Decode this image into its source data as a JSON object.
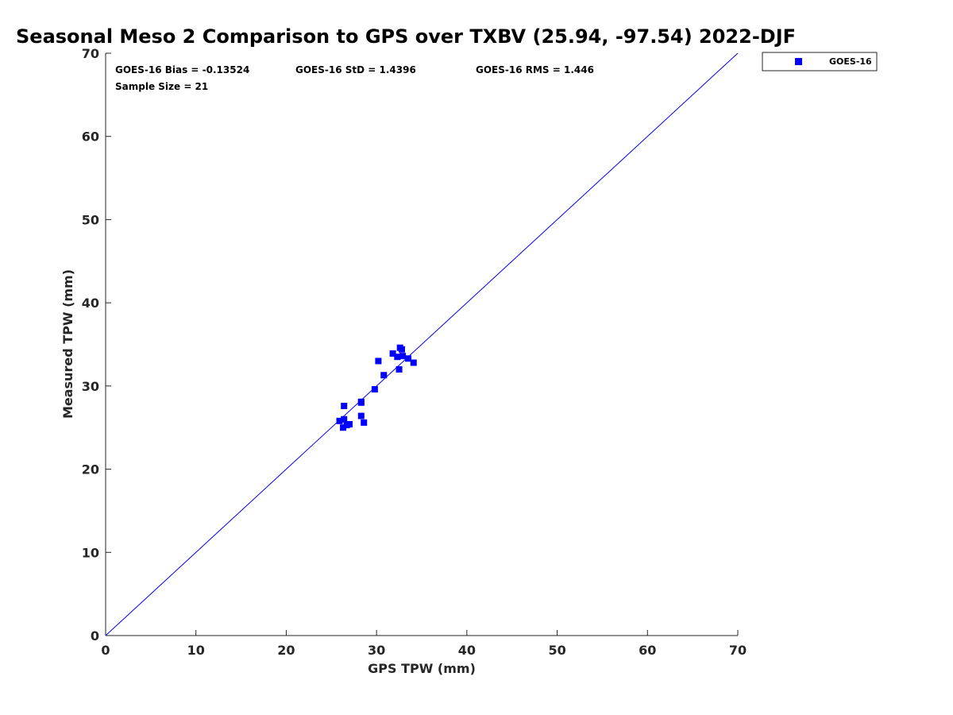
{
  "chart_data": {
    "type": "scatter",
    "title": "Seasonal Meso 2 Comparison to GPS over TXBV (25.94, -97.54) 2022-DJF",
    "xlabel": "GPS TPW (mm)",
    "ylabel": "Measured TPW (mm)",
    "xlim": [
      0,
      70
    ],
    "ylim": [
      0,
      70
    ],
    "xticks": [
      "0",
      "10",
      "20",
      "30",
      "40",
      "50",
      "60",
      "70"
    ],
    "yticks": [
      "0",
      "10",
      "20",
      "30",
      "40",
      "50",
      "60",
      "70"
    ],
    "grid": false,
    "legend_position": "outside top-right",
    "reference_line": {
      "x": [
        0,
        70
      ],
      "y": [
        0,
        70
      ],
      "color": "#0000ff"
    },
    "stats": {
      "bias": "GOES-16 Bias = -0.13524",
      "std": "GOES-16 StD = 1.4396",
      "rms": "GOES-16 RMS = 1.446",
      "sample": "Sample Size = 21"
    },
    "series": [
      {
        "name": "GOES-16",
        "color": "#0000ff",
        "marker": "square",
        "points": [
          [
            25.9,
            25.8
          ],
          [
            26.3,
            25.0
          ],
          [
            26.4,
            26.0
          ],
          [
            26.4,
            27.6
          ],
          [
            26.7,
            25.3
          ],
          [
            27.0,
            25.4
          ],
          [
            28.3,
            28.1
          ],
          [
            28.3,
            26.4
          ],
          [
            28.6,
            25.6
          ],
          [
            29.8,
            29.6
          ],
          [
            30.2,
            33.0
          ],
          [
            30.8,
            31.3
          ],
          [
            31.8,
            33.9
          ],
          [
            32.3,
            33.5
          ],
          [
            32.5,
            32.0
          ],
          [
            32.6,
            34.6
          ],
          [
            32.8,
            34.4
          ],
          [
            32.9,
            33.6
          ],
          [
            33.5,
            33.3
          ],
          [
            34.1,
            32.8
          ],
          [
            28.3,
            28.0
          ]
        ]
      }
    ]
  }
}
